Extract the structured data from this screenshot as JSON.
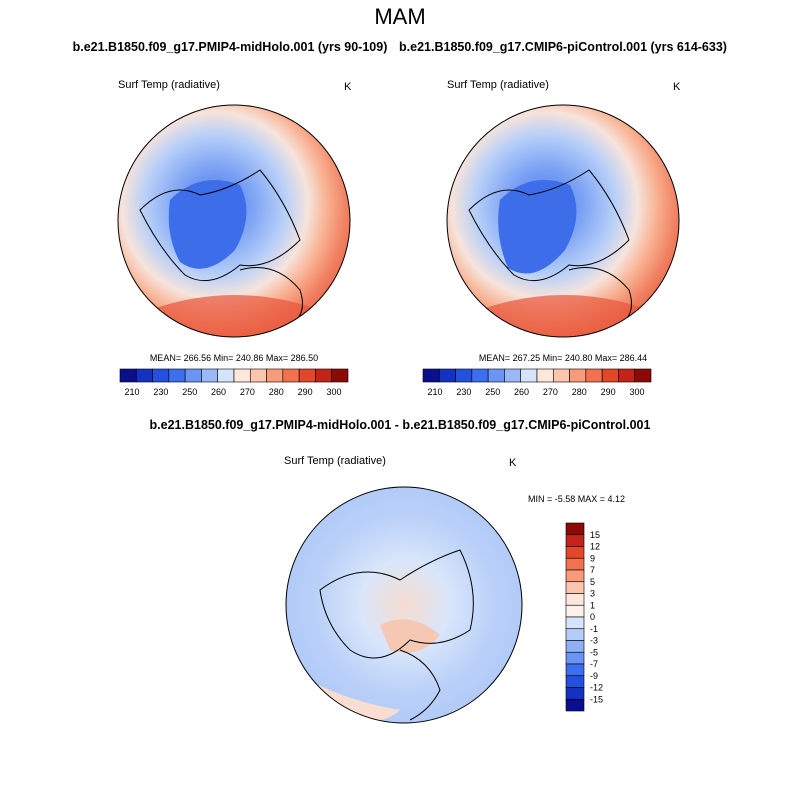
{
  "title": "MAM",
  "panels": [
    {
      "title": "b.e21.B1850.f09_g17.PMIP4-midHolo.001 (yrs 90-109)",
      "variable": "Surf Temp (radiative)",
      "units": "K",
      "stats": "MEAN= 266.56  Min= 240.86  Max= 286.50",
      "colorbar": {
        "labels": [
          "210",
          "230",
          "250",
          "260",
          "270",
          "280",
          "290",
          "300"
        ],
        "colors": [
          "#0a0f8c",
          "#1531c4",
          "#2450e0",
          "#3c6ff0",
          "#6a95f5",
          "#9ab8f7",
          "#d6e4fb",
          "#fde6da",
          "#fbc5ae",
          "#f79b7b",
          "#f2714f",
          "#e2472a",
          "#c42318",
          "#8b0a06"
        ]
      }
    },
    {
      "title": "b.e21.B1850.f09_g17.CMIP6-piControl.001 (yrs 614-633)",
      "variable": "Surf Temp (radiative)",
      "units": "K",
      "stats": "MEAN= 267.25  Min= 240.80  Max= 286.44",
      "colorbar": {
        "labels": [
          "210",
          "230",
          "250",
          "260",
          "270",
          "280",
          "290",
          "300"
        ],
        "colors": [
          "#0a0f8c",
          "#1531c4",
          "#2450e0",
          "#3c6ff0",
          "#6a95f5",
          "#9ab8f7",
          "#d6e4fb",
          "#fde6da",
          "#fbc5ae",
          "#f79b7b",
          "#f2714f",
          "#e2472a",
          "#c42318",
          "#8b0a06"
        ]
      }
    }
  ],
  "difference": {
    "title": "b.e21.B1850.f09_g17.PMIP4-midHolo.001 - b.e21.B1850.f09_g17.CMIP6-piControl.001",
    "variable": "Surf Temp (radiative)",
    "units": "K",
    "stats": "MIN =  -5.58 MAX =   4.12",
    "colorbar": {
      "labels": [
        "15",
        "12",
        "9",
        "7",
        "5",
        "3",
        "1",
        "0",
        "-1",
        "-3",
        "-5",
        "-7",
        "-9",
        "-12",
        "-15"
      ],
      "colors": [
        "#8b0a06",
        "#c42318",
        "#e2472a",
        "#f2714f",
        "#f79b7b",
        "#fbc5ae",
        "#fde6da",
        "#fdf1ea",
        "#d6e4fb",
        "#b4cdf8",
        "#8fb0f4",
        "#6a95f5",
        "#3c6ff0",
        "#2450e0",
        "#1531c4",
        "#0a0f8c"
      ]
    }
  }
}
